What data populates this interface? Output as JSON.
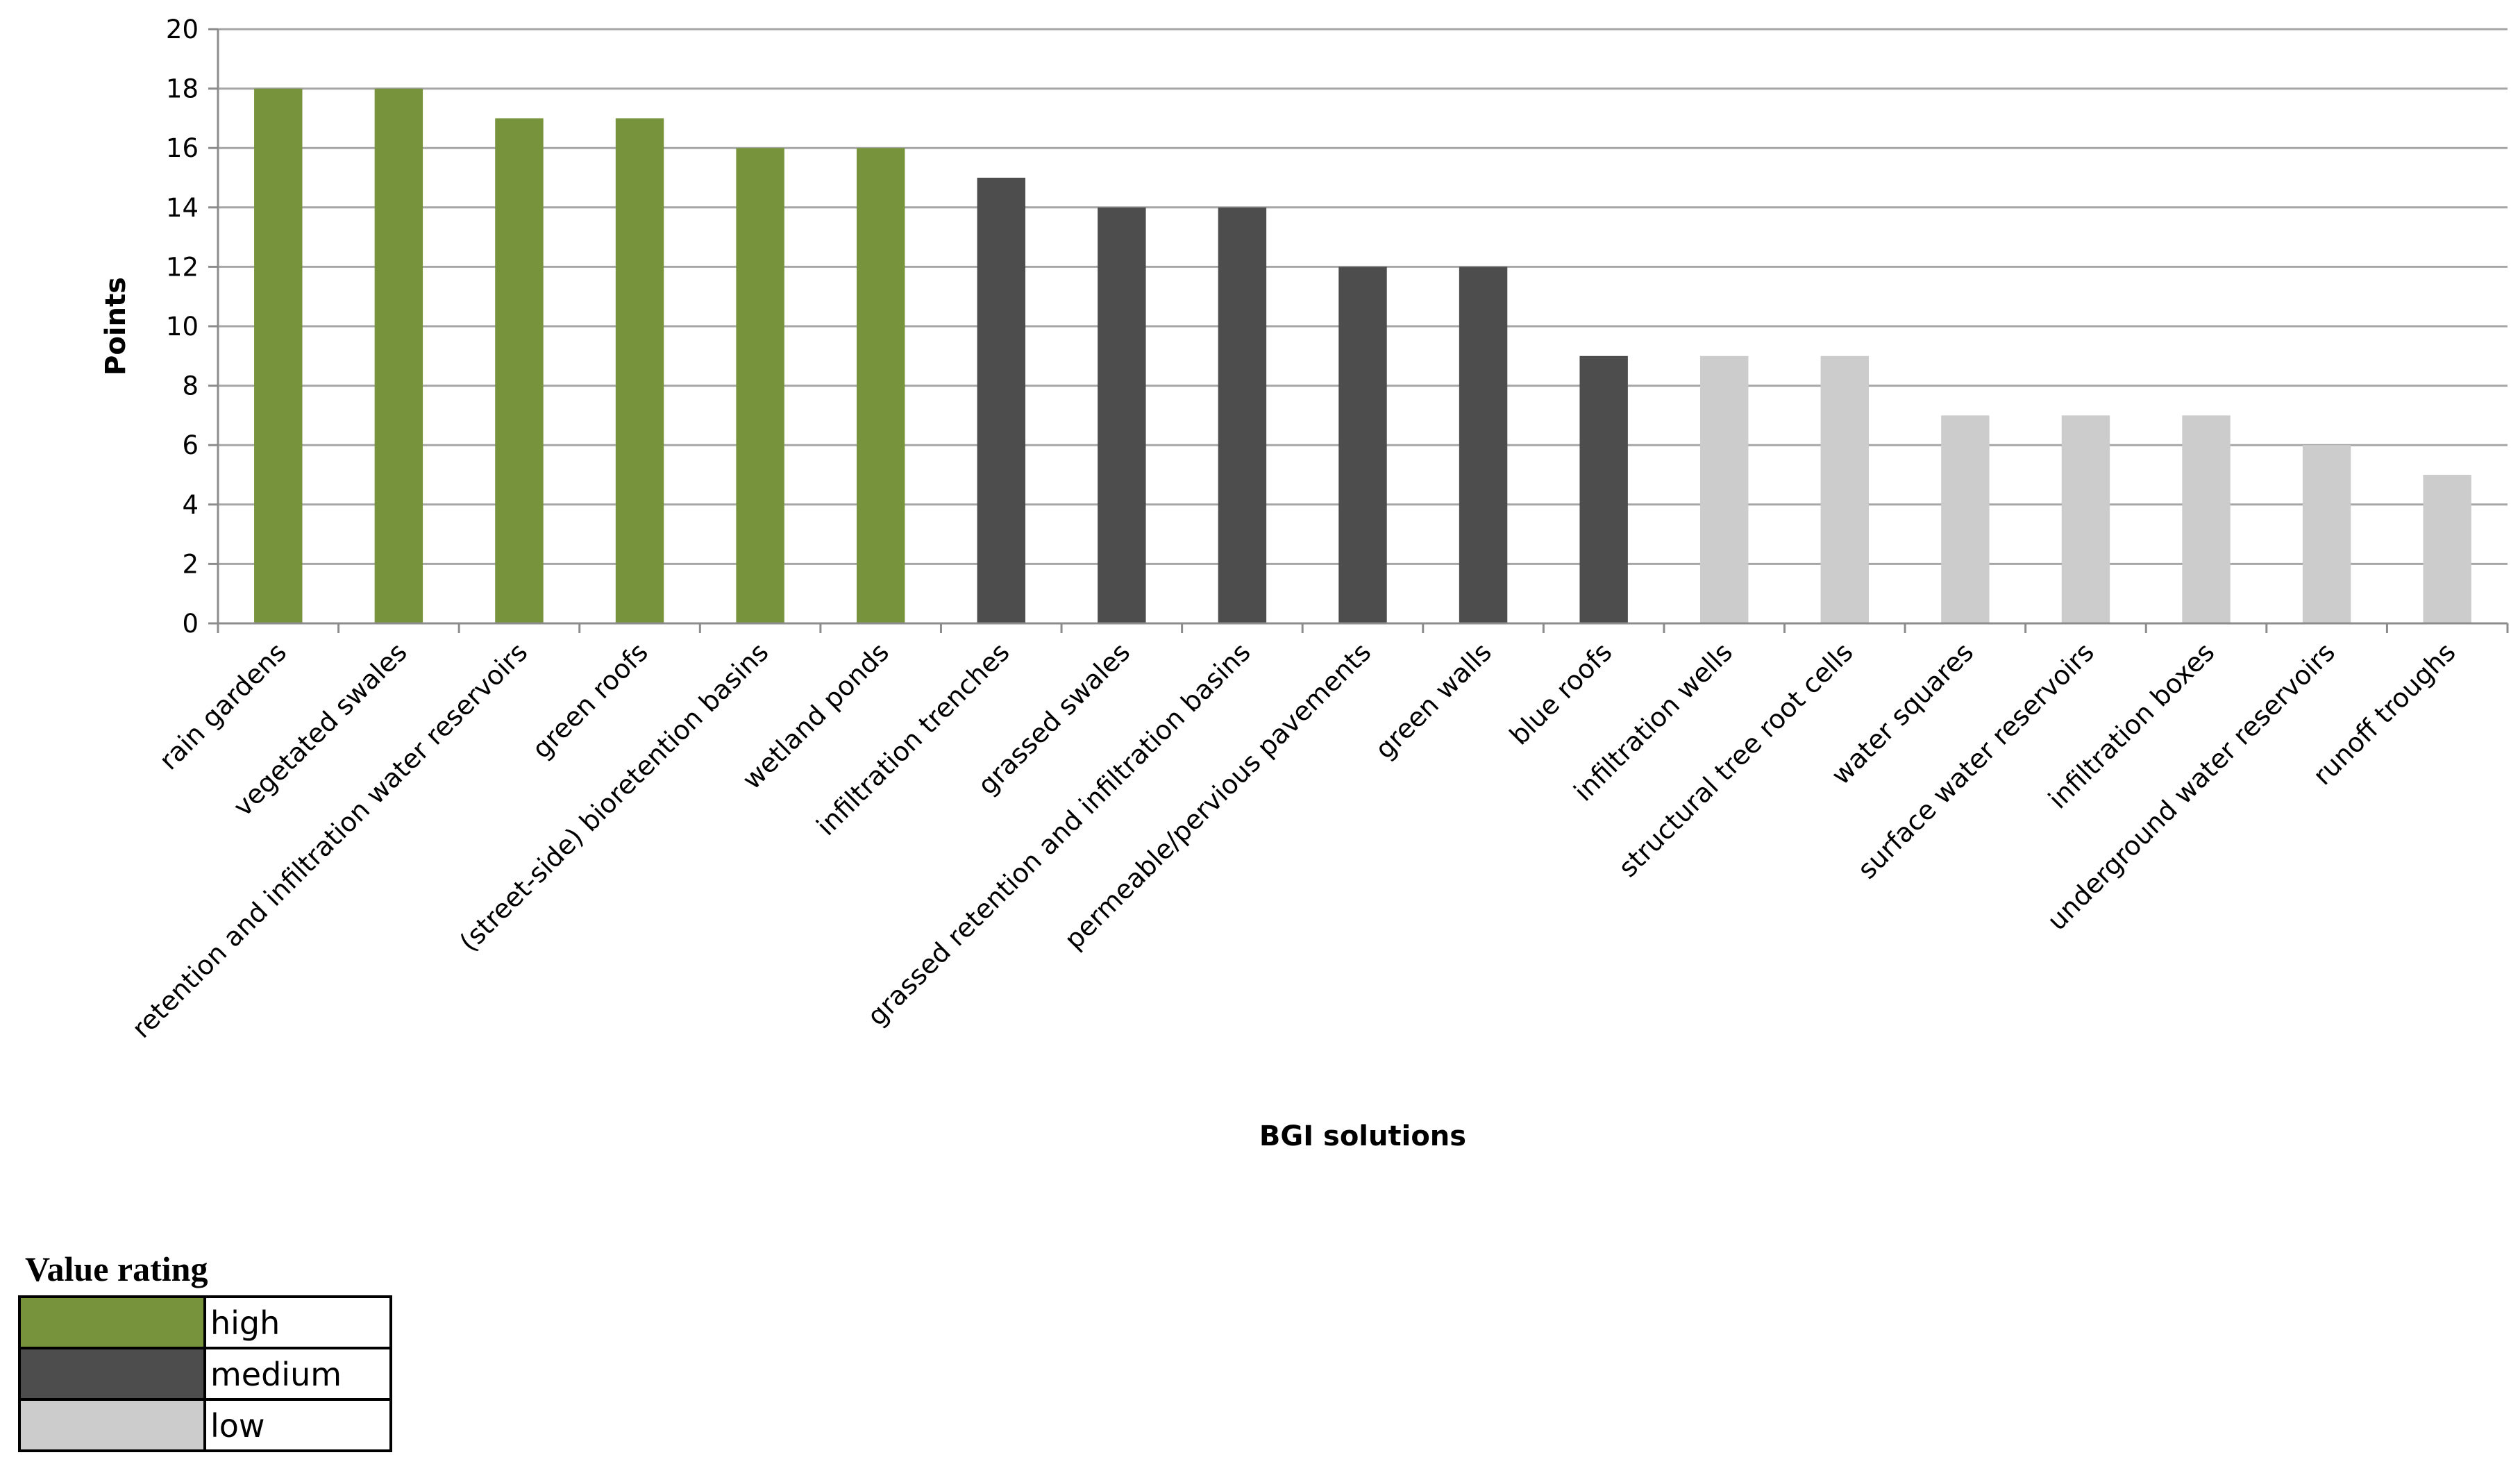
{
  "chart_data": {
    "type": "bar",
    "categories": [
      "rain gardens",
      "vegetated swales",
      "retention and infiltration water reservoirs",
      "green roofs",
      "(street-side) bioretention basins",
      "wetland ponds",
      "infiltration trenches",
      "grassed swales",
      "grassed retention and infiltration basins",
      "permeable/pervious pavements",
      "green walls",
      "blue roofs",
      "infiltration wells",
      "structural tree root cells",
      "water squares",
      "surface water reservoirs",
      "infiltration boxes",
      "underground water reservoirs",
      "runoff troughs"
    ],
    "values": [
      18,
      18,
      17,
      17,
      16,
      16,
      15,
      14,
      14,
      12,
      12,
      9,
      9,
      9,
      7,
      7,
      7,
      6,
      5
    ],
    "ratings": [
      "high",
      "high",
      "high",
      "high",
      "high",
      "high",
      "medium",
      "medium",
      "medium",
      "medium",
      "medium",
      "medium",
      "low",
      "low",
      "low",
      "low",
      "low",
      "low",
      "low"
    ],
    "xlabel": "BGI solutions",
    "ylabel": "Points",
    "ylim": [
      0,
      20
    ],
    "yticks": [
      0,
      2,
      4,
      6,
      8,
      10,
      12,
      14,
      16,
      18,
      20
    ],
    "grid": true,
    "legend": {
      "title": "Value rating",
      "placement": "bottom-left",
      "entries": [
        {
          "key": "high",
          "label": "high",
          "color": "#77933c"
        },
        {
          "key": "medium",
          "label": "medium",
          "color": "#4d4d4d"
        },
        {
          "key": "low",
          "label": "low",
          "color": "#cccccc"
        }
      ]
    }
  }
}
